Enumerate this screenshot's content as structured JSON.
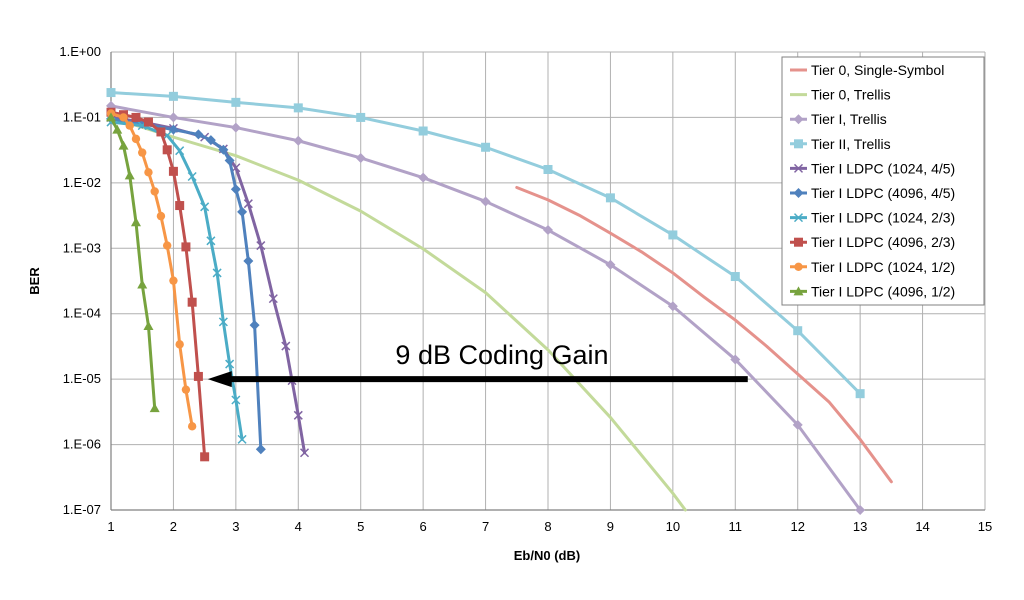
{
  "chart_data": {
    "type": "line",
    "xlabel": "Eb/N0 (dB)",
    "ylabel": "BER",
    "xlim": [
      1,
      15
    ],
    "ylim": [
      1e-07,
      1
    ],
    "yscale": "log",
    "grid": true,
    "legend_position": "top-right",
    "x_ticks": [
      "1",
      "2",
      "3",
      "4",
      "5",
      "6",
      "7",
      "8",
      "9",
      "10",
      "11",
      "12",
      "13",
      "14",
      "15"
    ],
    "y_ticks": [
      {
        "value": 1,
        "label": "1.E+00"
      },
      {
        "value": 0.1,
        "label": "1.E-01"
      },
      {
        "value": 0.01,
        "label": "1.E-02"
      },
      {
        "value": 0.001,
        "label": "1.E-03"
      },
      {
        "value": 0.0001,
        "label": "1.E-04"
      },
      {
        "value": 1e-05,
        "label": "1.E-05"
      },
      {
        "value": 1e-06,
        "label": "1.E-06"
      },
      {
        "value": 1e-07,
        "label": "1.E-07"
      }
    ],
    "series": [
      {
        "name": "Tier 0, Single-Symbol",
        "color": "#E5928C",
        "marker": "none",
        "x": [
          7.5,
          8,
          8.5,
          9,
          9.5,
          10,
          10.5,
          11,
          11.5,
          12,
          12.5,
          13,
          13.5
        ],
        "y": [
          0.0085,
          0.0055,
          0.0032,
          0.0017,
          0.00088,
          0.00042,
          0.00018,
          8e-05,
          3.2e-05,
          1.2e-05,
          4.5e-06,
          1.2e-06,
          2.7e-07
        ]
      },
      {
        "name": "Tier 0, Trellis",
        "color": "#C3DA9A",
        "marker": "none",
        "x": [
          1,
          2,
          3,
          4,
          5,
          6,
          7,
          8,
          9,
          10,
          10.2
        ],
        "y": [
          0.1,
          0.05,
          0.026,
          0.011,
          0.0037,
          0.00098,
          0.00021,
          2.8e-05,
          2.6e-06,
          1.8e-07,
          1e-07
        ]
      },
      {
        "name": "Tier I, Trellis",
        "color": "#B2A2C7",
        "marker": "diamond",
        "x": [
          1,
          2,
          3,
          4,
          5,
          6,
          7,
          8,
          9,
          10,
          11,
          12,
          13
        ],
        "y": [
          0.15,
          0.1,
          0.07,
          0.044,
          0.024,
          0.012,
          0.0052,
          0.0019,
          0.00056,
          0.00013,
          2e-05,
          2e-06,
          1e-07
        ]
      },
      {
        "name": "Tier II, Trellis",
        "color": "#93CDDD",
        "marker": "square",
        "x": [
          1,
          2,
          3,
          4,
          5,
          6,
          7,
          8,
          9,
          10,
          11,
          12,
          13
        ],
        "y": [
          0.24,
          0.21,
          0.17,
          0.14,
          0.1,
          0.062,
          0.035,
          0.016,
          0.0059,
          0.0016,
          0.00037,
          5.5e-05,
          6e-06
        ]
      },
      {
        "name": "Tier I LDPC (1024, 4/5)",
        "color": "#8064A2",
        "marker": "x",
        "x": [
          1,
          1.5,
          2,
          2.5,
          2.8,
          3,
          3.2,
          3.4,
          3.6,
          3.8,
          3.9,
          4,
          4.1
        ],
        "y": [
          0.1,
          0.085,
          0.068,
          0.05,
          0.033,
          0.017,
          0.0048,
          0.0011,
          0.00017,
          3.2e-05,
          9.5e-06,
          2.8e-06,
          7.5e-07
        ]
      },
      {
        "name": "Tier I LDPC (4096, 4/5)",
        "color": "#4F81BD",
        "marker": "diamond",
        "x": [
          1,
          1.5,
          2,
          2.4,
          2.6,
          2.8,
          2.9,
          3,
          3.1,
          3.2,
          3.3,
          3.4
        ],
        "y": [
          0.095,
          0.08,
          0.065,
          0.055,
          0.045,
          0.032,
          0.022,
          0.008,
          0.0036,
          0.00064,
          6.7e-05,
          8.5e-07
        ]
      },
      {
        "name": "Tier I LDPC (1024, 2/3)",
        "color": "#4BACC6",
        "marker": "x",
        "x": [
          1,
          1.5,
          1.9,
          2.1,
          2.3,
          2.5,
          2.6,
          2.7,
          2.8,
          2.9,
          3,
          3.1
        ],
        "y": [
          0.085,
          0.075,
          0.053,
          0.031,
          0.0125,
          0.0043,
          0.0013,
          0.00042,
          7.5e-05,
          1.7e-05,
          4.8e-06,
          1.2e-06
        ]
      },
      {
        "name": "Tier I LDPC (4096, 2/3)",
        "color": "#C0504D",
        "marker": "square",
        "x": [
          1,
          1.2,
          1.4,
          1.6,
          1.8,
          1.9,
          2,
          2.1,
          2.2,
          2.3,
          2.4,
          2.5
        ],
        "y": [
          0.12,
          0.11,
          0.1,
          0.085,
          0.06,
          0.032,
          0.015,
          0.0045,
          0.00105,
          0.00015,
          1.1e-05,
          6.5e-07
        ]
      },
      {
        "name": "Tier I LDPC (1024, 1/2)",
        "color": "#F79646",
        "marker": "circle",
        "x": [
          1,
          1.2,
          1.3,
          1.4,
          1.5,
          1.6,
          1.7,
          1.8,
          1.9,
          2,
          2.1,
          2.2,
          2.3
        ],
        "y": [
          0.115,
          0.1,
          0.075,
          0.047,
          0.029,
          0.0145,
          0.0074,
          0.0031,
          0.0011,
          0.00032,
          3.4e-05,
          6.9e-06,
          1.9e-06
        ]
      },
      {
        "name": "Tier I LDPC (4096, 1/2)",
        "color": "#77A33E",
        "marker": "triangle",
        "x": [
          1,
          1.1,
          1.2,
          1.3,
          1.4,
          1.5,
          1.6,
          1.7
        ],
        "y": [
          0.1,
          0.065,
          0.037,
          0.013,
          0.0025,
          0.00028,
          6.5e-05,
          3.6e-06
        ]
      }
    ],
    "annotation": {
      "text": "9 dB Coding Gain",
      "x_start": 11.2,
      "x_end": 2.55,
      "y": 1e-05
    }
  }
}
